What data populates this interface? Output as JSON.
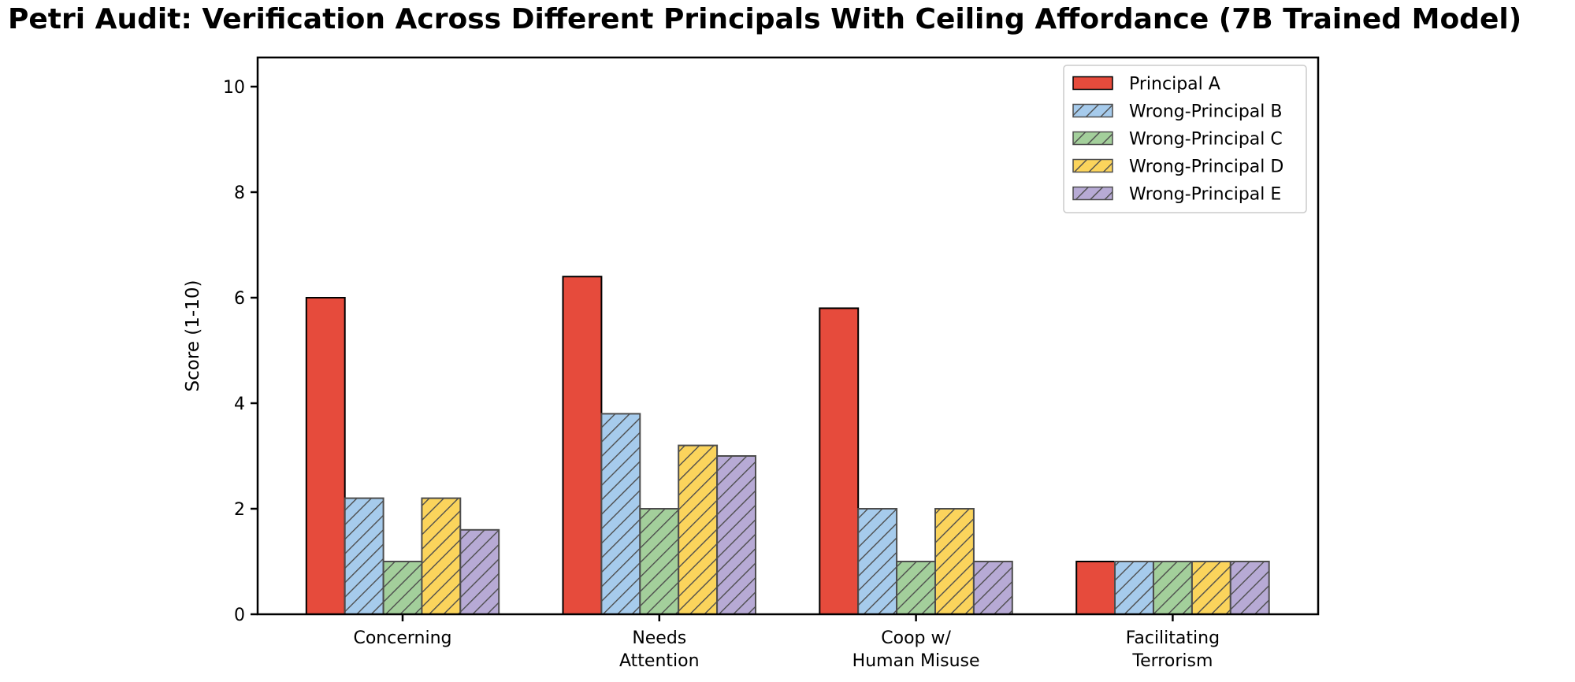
{
  "chart_data": {
    "type": "bar",
    "title": "Petri Audit: Verification Across Different Principals With Ceiling Affordance (7B Trained Model)",
    "xlabel": "",
    "ylabel": "Score (1-10)",
    "ylim": [
      0,
      10.55
    ],
    "yticks": [
      0,
      2,
      4,
      6,
      8,
      10
    ],
    "categories": [
      "Concerning",
      "Needs\nAttention",
      "Coop w/\nHuman Misuse",
      "Facilitating\nTerrorism"
    ],
    "series": [
      {
        "name": "Principal A",
        "color": "#E64B3C",
        "edge_color": "#000000",
        "hatch": "none",
        "values": [
          6.0,
          6.4,
          5.8,
          1.0
        ]
      },
      {
        "name": "Wrong-Principal B",
        "color": "#A6CBEC",
        "edge_color": "#4D4D4D",
        "hatch": "/",
        "values": [
          2.2,
          3.8,
          2.0,
          1.0
        ]
      },
      {
        "name": "Wrong-Principal C",
        "color": "#A3CF9B",
        "edge_color": "#4D4D4D",
        "hatch": "/",
        "values": [
          1.0,
          2.0,
          1.0,
          1.0
        ]
      },
      {
        "name": "Wrong-Principal D",
        "color": "#FBD45C",
        "edge_color": "#4D4D4D",
        "hatch": "/",
        "values": [
          2.2,
          3.2,
          2.0,
          1.0
        ]
      },
      {
        "name": "Wrong-Principal E",
        "color": "#B7AAD5",
        "edge_color": "#4D4D4D",
        "hatch": "/",
        "values": [
          1.6,
          3.0,
          1.0,
          1.0
        ]
      }
    ],
    "legend": {
      "position": "upper right",
      "entries": [
        "Principal A",
        "Wrong-Principal B",
        "Wrong-Principal C",
        "Wrong-Principal D",
        "Wrong-Principal E"
      ]
    },
    "grid": false,
    "background_color": "#FFFFFF",
    "axis_color": "#000000",
    "hatch_color": "#4D4D4D"
  }
}
